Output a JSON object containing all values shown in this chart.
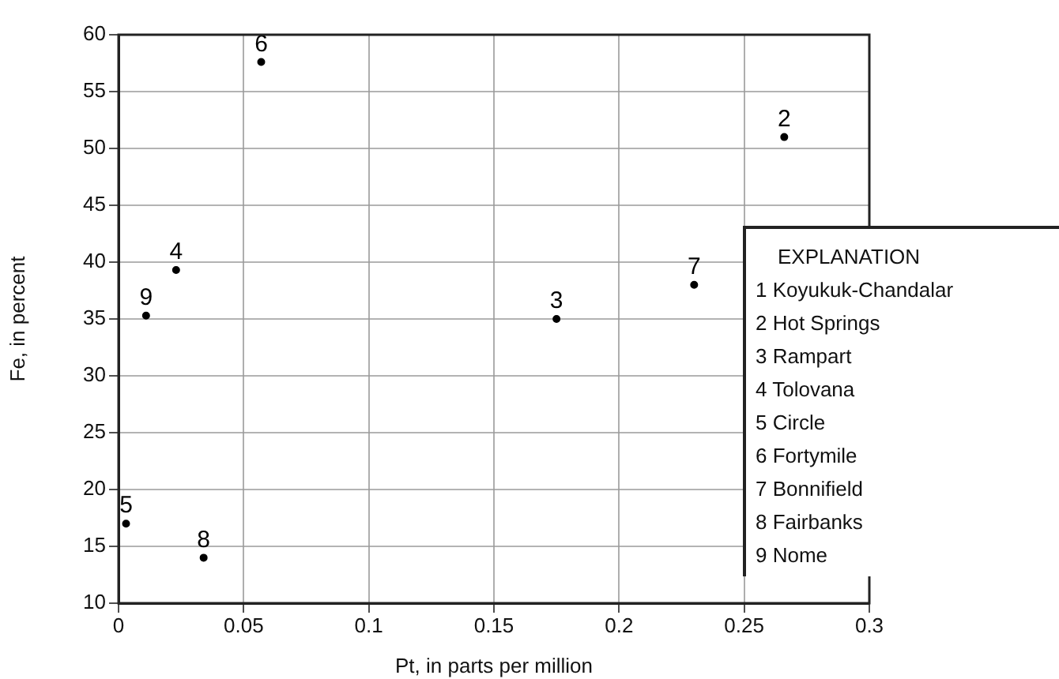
{
  "chart_data": {
    "type": "scatter",
    "xlabel": "Pt, in parts per million",
    "ylabel": "Fe, in percent",
    "grid": true,
    "marker": "circle",
    "xlim": [
      0,
      0.3
    ],
    "xticks": [
      0,
      0.05,
      0.1,
      0.15,
      0.2,
      0.25,
      0.3
    ],
    "ylim": [
      10,
      60
    ],
    "yticks": [
      10,
      15,
      20,
      25,
      30,
      35,
      40,
      45,
      50,
      55,
      60
    ],
    "series": [
      {
        "color": "#000000",
        "x": [
          0.266,
          0.175,
          0.023,
          0.003,
          0.057,
          0.23,
          0.034,
          0.011
        ],
        "values": [
          51,
          35,
          39.3,
          17,
          57.6,
          38,
          14,
          35.3
        ]
      }
    ],
    "annotations": [
      "EXPLANATION",
      "1 Koyukuk-Chandalar",
      "2 Hot Springs",
      "3 Rampart",
      "4 Tolovana",
      "5 Circle",
      "6 Fortymile",
      "7 Bonnifield",
      "8 Fairbanks",
      "9 Nome",
      {
        "text": "2",
        "x": 0.266,
        "y": 51
      },
      {
        "text": "3",
        "x": 0.175,
        "y": 35
      },
      {
        "text": "4",
        "x": 0.023,
        "y": 39.3
      },
      {
        "text": "5",
        "x": 0.003,
        "y": 17
      },
      {
        "text": "6",
        "x": 0.057,
        "y": 57.6
      },
      {
        "text": "7",
        "x": 0.23,
        "y": 38
      },
      {
        "text": "8",
        "x": 0.034,
        "y": 14
      },
      {
        "text": "9",
        "x": 0.011,
        "y": 35.3
      }
    ]
  }
}
